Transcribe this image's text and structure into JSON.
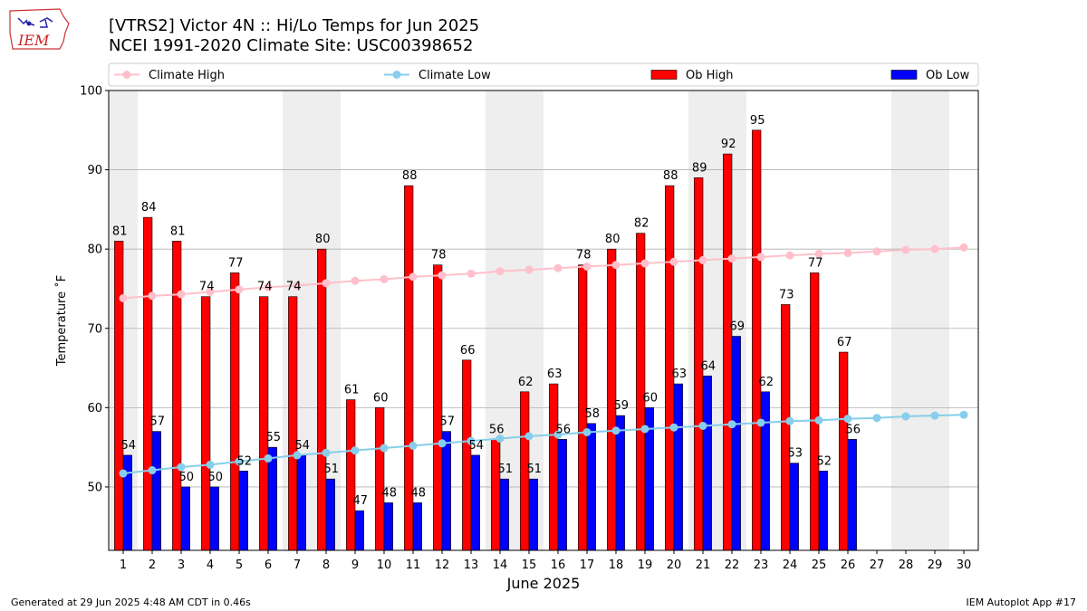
{
  "header": {
    "logo_text": "IEM",
    "title_line1": "[VTRS2] Victor 4N :: Hi/Lo Temps for Jun 2025",
    "title_line2": "NCEI 1991-2020 Climate Site: USC00398652"
  },
  "footer": {
    "left": "Generated at 29 Jun 2025 4:48 AM CDT in 0.46s",
    "right": "IEM Autoplot App #17"
  },
  "colors": {
    "ob_high": "#ff0000",
    "ob_low": "#0000ff",
    "climate_high": "#ffc0cb",
    "climate_low": "#87ceeb",
    "weekend_shade": "#eeeeee",
    "grid": "#b0b0b0"
  },
  "chart_data": {
    "type": "bar",
    "xlabel": "June 2025",
    "ylabel": "Temperature ˚F",
    "ylim": [
      42,
      100
    ],
    "xlim": [
      0.5,
      30.5
    ],
    "yticks": [
      50,
      60,
      70,
      80,
      90,
      100
    ],
    "grid": "horizontal",
    "legend_position": "top",
    "categories": [
      "1",
      "2",
      "3",
      "4",
      "5",
      "6",
      "7",
      "8",
      "9",
      "10",
      "11",
      "12",
      "13",
      "14",
      "15",
      "16",
      "17",
      "18",
      "19",
      "20",
      "21",
      "22",
      "23",
      "24",
      "25",
      "26",
      "27",
      "28",
      "29",
      "30"
    ],
    "shaded_days": [
      1,
      7,
      8,
      14,
      15,
      21,
      22,
      28,
      29
    ],
    "series": [
      {
        "name": "Ob High",
        "kind": "bar",
        "values": [
          81,
          84,
          81,
          74,
          77,
          74,
          74,
          80,
          61,
          60,
          88,
          78,
          66,
          56,
          62,
          63,
          78,
          80,
          82,
          88,
          89,
          92,
          95,
          73,
          77,
          67,
          null,
          null,
          null,
          null
        ]
      },
      {
        "name": "Ob Low",
        "kind": "bar",
        "values": [
          54,
          57,
          50,
          50,
          52,
          55,
          54,
          51,
          47,
          48,
          48,
          57,
          54,
          51,
          51,
          56,
          58,
          59,
          60,
          63,
          64,
          69,
          62,
          53,
          52,
          56,
          null,
          null,
          null,
          null
        ]
      },
      {
        "name": "Climate High",
        "kind": "line",
        "values": [
          73.8,
          74.1,
          74.3,
          74.6,
          74.9,
          75.2,
          75.4,
          75.7,
          76.0,
          76.2,
          76.5,
          76.7,
          76.9,
          77.2,
          77.4,
          77.6,
          77.8,
          78.0,
          78.2,
          78.4,
          78.6,
          78.8,
          79.0,
          79.2,
          79.4,
          79.5,
          79.7,
          79.9,
          80.0,
          80.2
        ]
      },
      {
        "name": "Climate Low",
        "kind": "line",
        "values": [
          51.7,
          52.1,
          52.5,
          52.8,
          53.2,
          53.6,
          54.0,
          54.3,
          54.6,
          54.9,
          55.2,
          55.5,
          55.8,
          56.1,
          56.4,
          56.6,
          56.9,
          57.1,
          57.3,
          57.5,
          57.7,
          57.9,
          58.1,
          58.3,
          58.4,
          58.6,
          58.7,
          58.9,
          59.0,
          59.1
        ]
      }
    ]
  }
}
